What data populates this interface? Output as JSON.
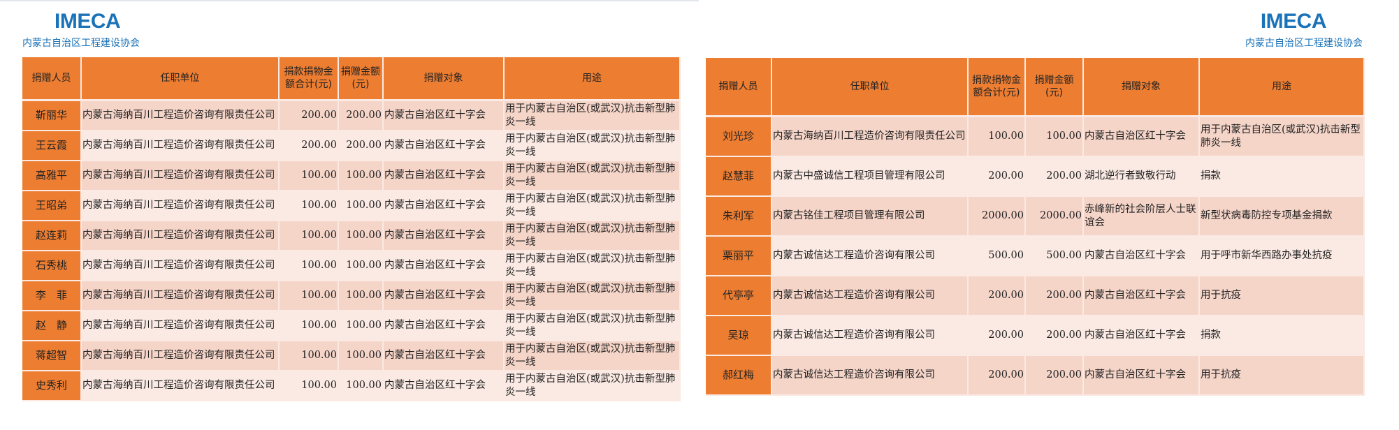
{
  "brand": {
    "name": "IMECA",
    "subtitle": "内蒙古自治区工程建设协会",
    "color": "#1a72b8"
  },
  "colors": {
    "header": "#ed7d31",
    "row_dark": "#f6d5c9",
    "row_light": "#fbeae4"
  },
  "left_table": {
    "headers": [
      "捐赠人员",
      "任职单位",
      "捐款捐物金额合计(元)",
      "捐赠金额(元)",
      "捐赠对象",
      "用途"
    ],
    "rows": [
      [
        "靳丽华",
        "内蒙古海纳百川工程造价咨询有限责任公司",
        "200.00",
        "200.00",
        "内蒙古自治区红十字会",
        "用于内蒙古自治区(或武汉)抗击新型肺炎一线"
      ],
      [
        "王云霞",
        "内蒙古海纳百川工程造价咨询有限责任公司",
        "200.00",
        "200.00",
        "内蒙古自治区红十字会",
        "用于内蒙古自治区(或武汉)抗击新型肺炎一线"
      ],
      [
        "高雅平",
        "内蒙古海纳百川工程造价咨询有限责任公司",
        "100.00",
        "100.00",
        "内蒙古自治区红十字会",
        "用于内蒙古自治区(或武汉)抗击新型肺炎一线"
      ],
      [
        "王昭弟",
        "内蒙古海纳百川工程造价咨询有限责任公司",
        "100.00",
        "100.00",
        "内蒙古自治区红十字会",
        "用于内蒙古自治区(或武汉)抗击新型肺炎一线"
      ],
      [
        "赵连莉",
        "内蒙古海纳百川工程造价咨询有限责任公司",
        "100.00",
        "100.00",
        "内蒙古自治区红十字会",
        "用于内蒙古自治区(或武汉)抗击新型肺炎一线"
      ],
      [
        "石秀桃",
        "内蒙古海纳百川工程造价咨询有限责任公司",
        "100.00",
        "100.00",
        "内蒙古自治区红十字会",
        "用于内蒙古自治区(或武汉)抗击新型肺炎一线"
      ],
      [
        "李　菲",
        "内蒙古海纳百川工程造价咨询有限责任公司",
        "100.00",
        "100.00",
        "内蒙古自治区红十字会",
        "用于内蒙古自治区(或武汉)抗击新型肺炎一线"
      ],
      [
        "赵　静",
        "内蒙古海纳百川工程造价咨询有限责任公司",
        "100.00",
        "100.00",
        "内蒙古自治区红十字会",
        "用于内蒙古自治区(或武汉)抗击新型肺炎一线"
      ],
      [
        "蒋超智",
        "内蒙古海纳百川工程造价咨询有限责任公司",
        "100.00",
        "100.00",
        "内蒙古自治区红十字会",
        "用于内蒙古自治区(或武汉)抗击新型肺炎一线"
      ],
      [
        "史秀利",
        "内蒙古海纳百川工程造价咨询有限责任公司",
        "100.00",
        "100.00",
        "内蒙古自治区红十字会",
        "用于内蒙古自治区(或武汉)抗击新型肺炎一线"
      ]
    ]
  },
  "right_table": {
    "headers": [
      "捐赠人员",
      "任职单位",
      "捐款捐物金额合计(元)",
      "捐赠金额(元)",
      "捐赠对象",
      "用途"
    ],
    "rows": [
      [
        "刘光珍",
        "内蒙古海纳百川工程造价咨询有限责任公司",
        "100.00",
        "100.00",
        "内蒙古自治区红十字会",
        "用于内蒙古自治区(或武汉)抗击新型肺炎一线"
      ],
      [
        "赵慧菲",
        "内蒙古中盛诚信工程项目管理有限公司",
        "200.00",
        "200.00",
        "湖北逆行者致敬行动",
        "捐款"
      ],
      [
        "朱利军",
        "内蒙古铭佳工程项目管理有限公司",
        "2000.00",
        "2000.00",
        "赤峰新的社会阶层人士联谊会",
        "新型状病毒防控专项基金捐款"
      ],
      [
        "栗丽平",
        "内蒙古诚信达工程造价咨询有限公司",
        "500.00",
        "500.00",
        "内蒙古自治区红十字会",
        "用于呼市新华西路办事处抗疫"
      ],
      [
        "代亭亭",
        "内蒙古诚信达工程造价咨询有限公司",
        "200.00",
        "200.00",
        "内蒙古自治区红十字会",
        "用于抗疫"
      ],
      [
        "吴琼",
        "内蒙古诚信达工程造价咨询有限公司",
        "200.00",
        "200.00",
        "内蒙古自治区红十字会",
        "捐款"
      ],
      [
        "郝红梅",
        "内蒙古诚信达工程造价咨询有限公司",
        "200.00",
        "200.00",
        "内蒙古自治区红十字会",
        "用于抗疫"
      ]
    ]
  }
}
